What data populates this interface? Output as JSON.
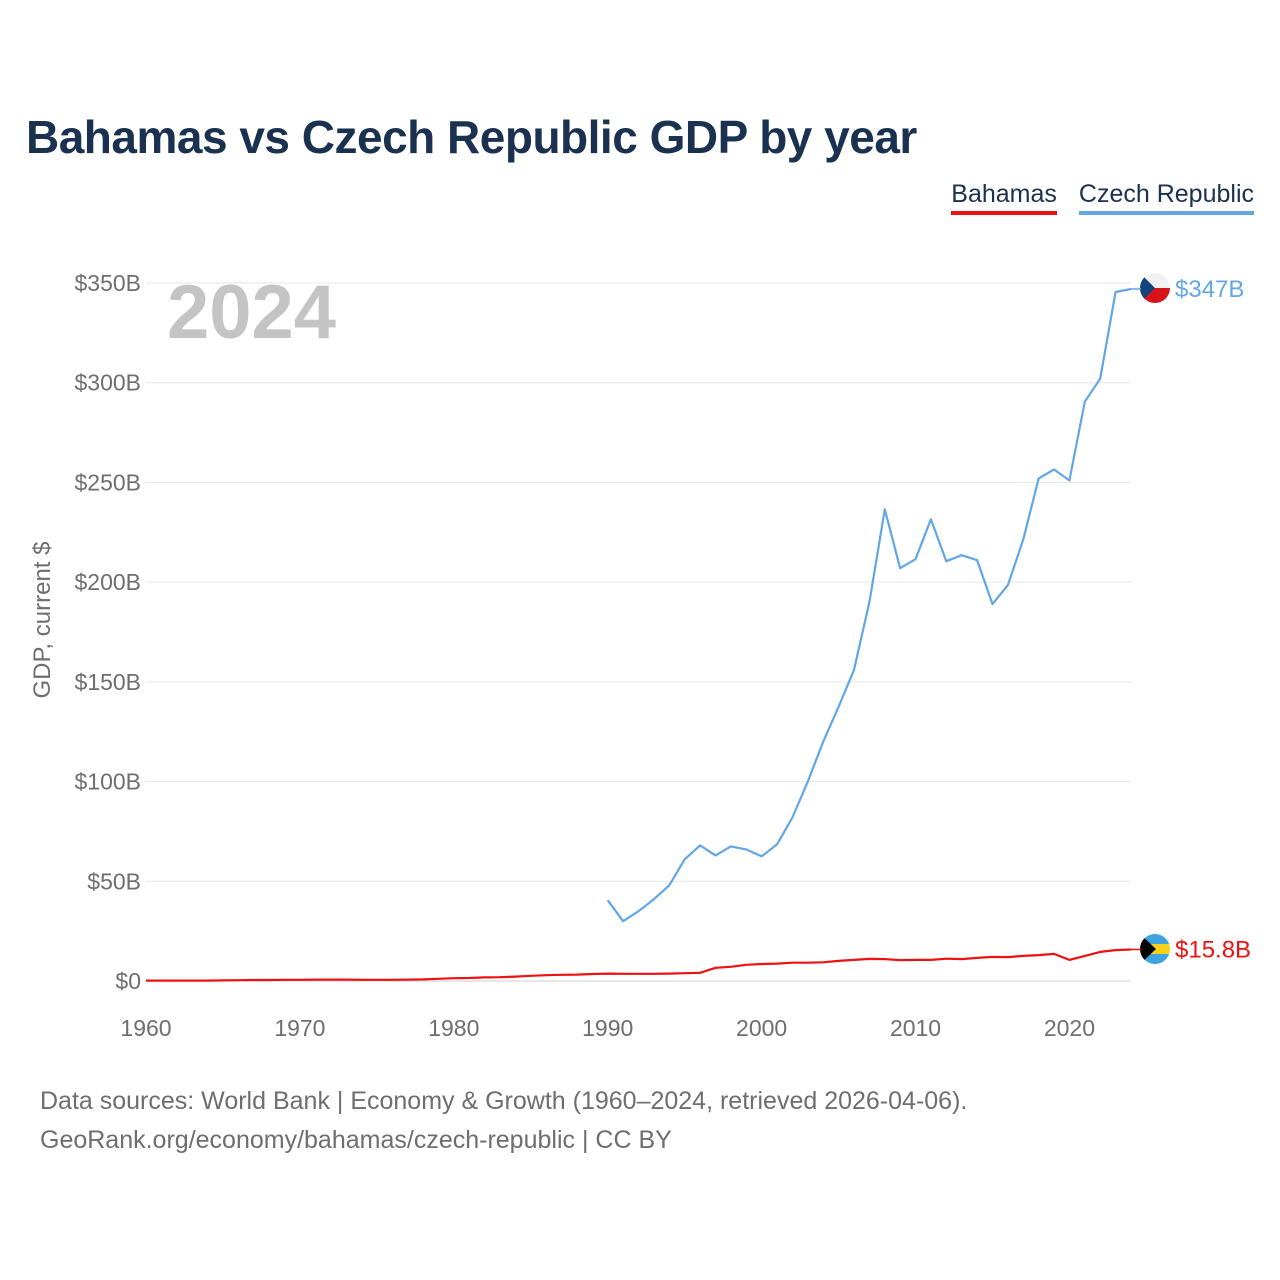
{
  "title": "Bahamas vs Czech Republic GDP by year",
  "legend": [
    {
      "label": "Bahamas",
      "color": "#ee1111"
    },
    {
      "label": "Czech Republic",
      "color": "#62a6e6"
    }
  ],
  "year_label": "2024",
  "source": {
    "line1": "Data sources: World Bank | Economy & Growth (1960–2024, retrieved 2026-04-06).",
    "line2": "GeoRank.org/economy/bahamas/czech-republic | CC BY"
  },
  "chart_data": {
    "type": "line",
    "title": "Bahamas vs Czech Republic GDP by year",
    "xlabel": "",
    "ylabel": "GDP, current $",
    "xlim": [
      1960,
      2024
    ],
    "ylim": [
      0,
      350
    ],
    "y_unit": "billion current US$",
    "grid": true,
    "legend_position": "top-right",
    "x_ticks": [
      1960,
      1970,
      1980,
      1990,
      2000,
      2010,
      2020
    ],
    "x_tick_labels": [
      "1960",
      "1970",
      "1980",
      "1990",
      "2000",
      "2010",
      "2020"
    ],
    "y_ticks": [
      0,
      50,
      100,
      150,
      200,
      250,
      300,
      350
    ],
    "y_tick_labels": [
      "$0",
      "$50B",
      "$100B",
      "$150B",
      "$200B",
      "$250B",
      "$300B",
      "$350B"
    ],
    "series": [
      {
        "name": "Bahamas",
        "color": "#ee1111",
        "end_label": "$15.8B",
        "x": [
          1960,
          1961,
          1962,
          1963,
          1964,
          1965,
          1966,
          1967,
          1968,
          1969,
          1970,
          1971,
          1972,
          1973,
          1974,
          1975,
          1976,
          1977,
          1978,
          1979,
          1980,
          1981,
          1982,
          1983,
          1984,
          1985,
          1986,
          1987,
          1988,
          1989,
          1990,
          1991,
          1992,
          1993,
          1994,
          1995,
          1996,
          1997,
          1998,
          1999,
          2000,
          2001,
          2002,
          2003,
          2004,
          2005,
          2006,
          2007,
          2008,
          2009,
          2010,
          2011,
          2012,
          2013,
          2014,
          2015,
          2016,
          2017,
          2018,
          2019,
          2020,
          2021,
          2022,
          2023,
          2024
        ],
        "values": [
          0.2,
          0.2,
          0.2,
          0.2,
          0.2,
          0.3,
          0.4,
          0.5,
          0.5,
          0.6,
          0.6,
          0.7,
          0.7,
          0.7,
          0.6,
          0.6,
          0.6,
          0.7,
          0.8,
          1.1,
          1.4,
          1.5,
          1.8,
          1.9,
          2.2,
          2.6,
          2.9,
          3.1,
          3.2,
          3.5,
          3.7,
          3.6,
          3.6,
          3.6,
          3.7,
          3.9,
          4.1,
          6.6,
          7.1,
          8.1,
          8.5,
          8.7,
          9.2,
          9.2,
          9.4,
          10.1,
          10.6,
          11.1,
          11.0,
          10.5,
          10.6,
          10.6,
          11.2,
          11.0,
          11.6,
          12.1,
          12.0,
          12.6,
          13.0,
          13.6,
          10.6,
          12.6,
          14.6,
          15.5,
          15.8
        ]
      },
      {
        "name": "Czech Republic",
        "color": "#62a6e6",
        "end_label": "$347B",
        "x": [
          1990,
          1991,
          1992,
          1993,
          1994,
          1995,
          1996,
          1997,
          1998,
          1999,
          2000,
          2001,
          2002,
          2003,
          2004,
          2005,
          2006,
          2007,
          2008,
          2009,
          2010,
          2011,
          2012,
          2013,
          2014,
          2015,
          2016,
          2017,
          2018,
          2019,
          2020,
          2021,
          2022,
          2023,
          2024
        ],
        "values": [
          40.5,
          30.0,
          35.0,
          41.0,
          48.0,
          61.0,
          68.0,
          63.0,
          67.5,
          66.0,
          62.5,
          68.5,
          82.0,
          100.0,
          120.0,
          137.5,
          156.0,
          190.0,
          236.5,
          207.0,
          211.5,
          231.5,
          210.5,
          213.5,
          211.0,
          189.0,
          198.5,
          221.5,
          252.0,
          256.5,
          251.0,
          290.5,
          302.0,
          345.5,
          347.0
        ]
      }
    ]
  }
}
